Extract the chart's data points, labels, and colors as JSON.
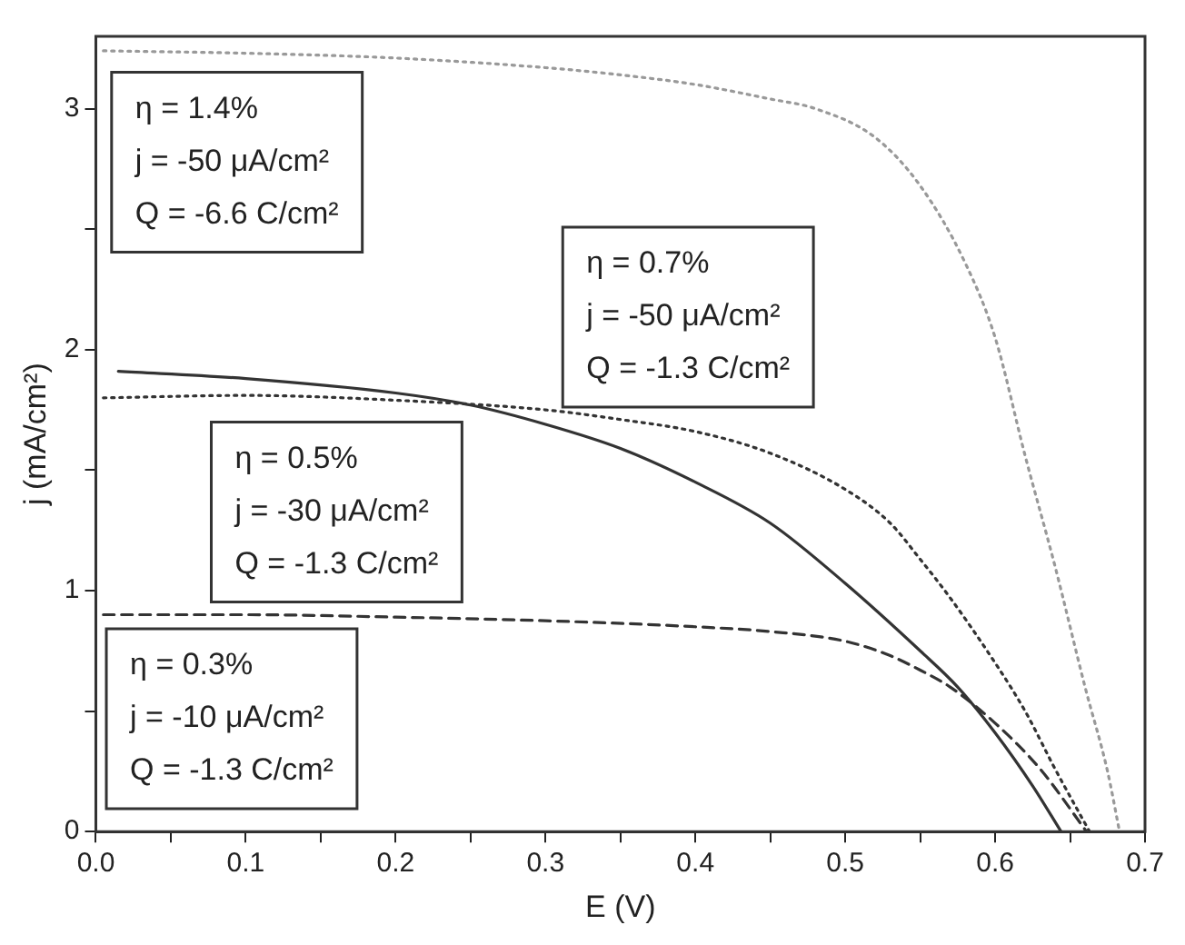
{
  "chart_data": {
    "type": "line",
    "xlabel": "E (V)",
    "ylabel": "j (mA/cm²)",
    "xlim": [
      0,
      0.7
    ],
    "ylim": [
      0,
      3.3
    ],
    "xticks": [
      {
        "value": 0,
        "label": "0.0"
      },
      {
        "value": 0.05,
        "label": null
      },
      {
        "value": 0.1,
        "label": "0.1"
      },
      {
        "value": 0.15,
        "label": null
      },
      {
        "value": 0.2,
        "label": "0.2"
      },
      {
        "value": 0.25,
        "label": null
      },
      {
        "value": 0.3,
        "label": "0.3"
      },
      {
        "value": 0.35,
        "label": null
      },
      {
        "value": 0.4,
        "label": "0.4"
      },
      {
        "value": 0.45,
        "label": null
      },
      {
        "value": 0.5,
        "label": "0.5"
      },
      {
        "value": 0.55,
        "label": null
      },
      {
        "value": 0.6,
        "label": "0.6"
      },
      {
        "value": 0.65,
        "label": null
      },
      {
        "value": 0.7,
        "label": "0.7"
      }
    ],
    "yticks": [
      0,
      {
        "value": 0.5,
        "label": null
      },
      1,
      {
        "value": 1.5,
        "label": null
      },
      2,
      {
        "value": 2.5,
        "label": null
      },
      3
    ],
    "marker": "none",
    "series": [
      {
        "color": "#999999",
        "line_style": "dotted",
        "x": [
          0.005,
          0.1,
          0.2,
          0.3,
          0.35,
          0.4,
          0.45,
          0.48,
          0.52,
          0.55,
          0.58,
          0.6,
          0.62,
          0.64,
          0.66,
          0.675,
          0.683
        ],
        "values": [
          3.24,
          3.23,
          3.21,
          3.17,
          3.14,
          3.1,
          3.04,
          3.0,
          2.88,
          2.68,
          2.36,
          2.05,
          1.56,
          1.1,
          0.6,
          0.25,
          0
        ]
      },
      {
        "color": "#333333",
        "line_style": "dotted",
        "x": [
          0.005,
          0.1,
          0.2,
          0.3,
          0.35,
          0.4,
          0.45,
          0.5,
          0.53,
          0.55,
          0.57,
          0.6,
          0.62,
          0.64,
          0.663
        ],
        "values": [
          1.8,
          1.81,
          1.79,
          1.75,
          1.71,
          1.66,
          1.57,
          1.42,
          1.28,
          1.13,
          0.97,
          0.7,
          0.5,
          0.26,
          0
        ]
      },
      {
        "color": "#333333",
        "line_style": "solid",
        "x": [
          0.015,
          0.1,
          0.2,
          0.25,
          0.3,
          0.35,
          0.4,
          0.45,
          0.5,
          0.55,
          0.575,
          0.6,
          0.625,
          0.644
        ],
        "values": [
          1.91,
          1.88,
          1.82,
          1.77,
          1.69,
          1.59,
          1.45,
          1.28,
          1.03,
          0.75,
          0.6,
          0.41,
          0.19,
          0
        ]
      },
      {
        "color": "#333333",
        "line_style": "dashed",
        "x": [
          0.005,
          0.1,
          0.2,
          0.3,
          0.4,
          0.45,
          0.5,
          0.53,
          0.55,
          0.57,
          0.6,
          0.63,
          0.661
        ],
        "values": [
          0.9,
          0.9,
          0.89,
          0.875,
          0.85,
          0.83,
          0.79,
          0.73,
          0.67,
          0.6,
          0.45,
          0.26,
          0
        ]
      }
    ],
    "annotations": [
      "η = 1.4%\nj = -50 μA/cm²\nQ = -6.6 C/cm²",
      "η = 0.7%\nj = -50 μA/cm²\nQ = -1.3 C/cm²",
      "η = 0.5%\nj = -30 μA/cm²\nQ = -1.3 C/cm²",
      "η = 0.3%\nj = -10 μA/cm²\nQ = -1.3 C/cm²"
    ]
  }
}
